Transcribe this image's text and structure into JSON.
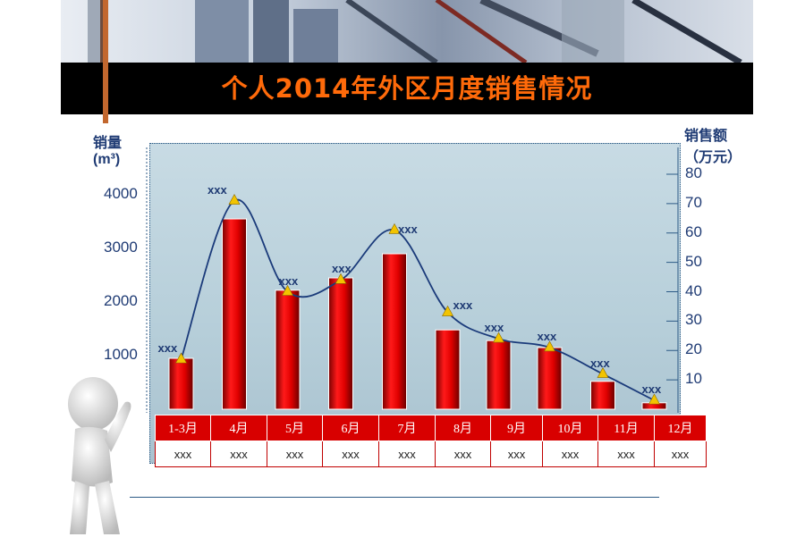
{
  "title": "个人2014年外区月度销售情况",
  "left_axis": {
    "line1": "销量",
    "line2": "(m³)"
  },
  "right_axis": {
    "line1": "销售额",
    "line2": "（万元）"
  },
  "chart_data": {
    "type": "bar",
    "categories": [
      "1-3月",
      "4月",
      "5月",
      "6月",
      "7月",
      "8月",
      "9月",
      "10月",
      "11月",
      "12月"
    ],
    "series": [
      {
        "values": [
          950,
          3550,
          2220,
          2450,
          2900,
          1480,
          1280,
          1150,
          520,
          120
        ]
      },
      {
        "values": [
          17,
          71,
          40,
          44,
          61,
          33,
          24,
          21,
          12,
          3
        ]
      }
    ],
    "ylim_left": [
      0,
      4000
    ],
    "ylim_right": [
      0,
      80
    ],
    "yticks_left": [
      "1000",
      "2000",
      "3000",
      "4000"
    ],
    "yticks_right": [
      "10",
      "20",
      "30",
      "40",
      "50",
      "60",
      "70",
      "80"
    ],
    "data_labels": [
      "xxx",
      "xxx",
      "xxx",
      "xxx",
      "xxx",
      "xxx",
      "xxx",
      "xxx",
      "xxx",
      "xxx"
    ],
    "table_values": [
      "xxx",
      "xxx",
      "xxx",
      "xxx",
      "xxx",
      "xxx",
      "xxx",
      "xxx",
      "xxx",
      "xxx"
    ]
  }
}
